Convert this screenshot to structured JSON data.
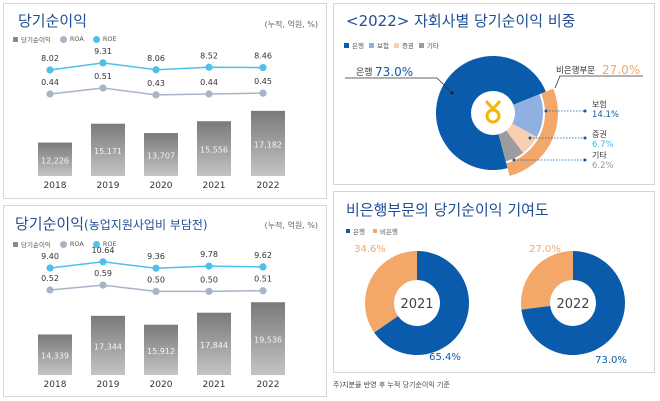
{
  "colors": {
    "bar": "#8a8a8a",
    "roa": "#a9b4c8",
    "roe": "#4fc0ea",
    "bank": "#0a5bab",
    "insurance": "#90b0e2",
    "securities": "#f8cfb3",
    "other": "#9c9c9c",
    "nonbank": "#f3a86a",
    "title": "#1f4e96"
  },
  "panels": {
    "p1": {
      "title": "당기순이익",
      "unit": "(누적, 억원, %)",
      "legend": [
        "당기순이익",
        "ROA",
        "ROE"
      ]
    },
    "p2": {
      "title": "<2022> 자회사별 당기순이익 비중",
      "legend": [
        "은행",
        "보험",
        "증권",
        "기타"
      ],
      "bank_label": "은행",
      "bank_value": "73.0%",
      "nonbank_label": "비은행부문",
      "nonbank_value": "27.0%",
      "logo_icon": "nonghyup-logo"
    },
    "p3": {
      "title": "당기순이익",
      "title_suffix": "(농업지원사업비 부담전)",
      "unit": "(누적, 억원, %)",
      "legend": [
        "당기순이익",
        "ROA",
        "ROE"
      ]
    },
    "p4": {
      "title": "비은행부문의 당기순이익 기여도",
      "legend": [
        "은행",
        "비은행"
      ]
    }
  },
  "footnote": "주)지분율 반영 후 누적 당기순이익 기준",
  "chart_data": [
    {
      "type": "bar",
      "title": "당기순이익",
      "categories": [
        "2018",
        "2019",
        "2020",
        "2021",
        "2022"
      ],
      "series": [
        {
          "name": "당기순이익",
          "values": [
            12226,
            15171,
            13707,
            15556,
            17182
          ],
          "labels": [
            "12,226",
            "15,171",
            "13,707",
            "15,556",
            "17,182"
          ]
        },
        {
          "name": "ROA",
          "type": "line",
          "values": [
            0.44,
            0.51,
            0.43,
            0.44,
            0.45
          ],
          "labels": [
            "0.44",
            "0.51",
            "0.43",
            "0.44",
            "0.45"
          ]
        },
        {
          "name": "ROE",
          "type": "line",
          "values": [
            8.02,
            9.31,
            8.06,
            8.52,
            8.46
          ],
          "labels": [
            "8.02",
            "9.31",
            "8.06",
            "8.52",
            "8.46"
          ]
        }
      ]
    },
    {
      "type": "pie",
      "title": "<2022> 자회사별 당기순이익 비중",
      "slices": [
        {
          "name": "은행",
          "value": 73.0,
          "label": "73.0%"
        },
        {
          "name": "보험",
          "value": 14.1,
          "label": "14.1%"
        },
        {
          "name": "증권",
          "value": 6.7,
          "label": "6.7%"
        },
        {
          "name": "기타",
          "value": 6.2,
          "label": "6.2%"
        }
      ],
      "group": {
        "name": "비은행부문",
        "value": 27.0
      }
    },
    {
      "type": "bar",
      "title": "당기순이익(농업지원사업비 부담전)",
      "categories": [
        "2018",
        "2019",
        "2020",
        "2021",
        "2022"
      ],
      "series": [
        {
          "name": "당기순이익",
          "values": [
            14339,
            17344,
            15912,
            17844,
            19536
          ],
          "labels": [
            "14,339",
            "17,344",
            "15,912",
            "17,844",
            "19,536"
          ]
        },
        {
          "name": "ROA",
          "type": "line",
          "values": [
            0.52,
            0.59,
            0.5,
            0.5,
            0.51
          ],
          "labels": [
            "0.52",
            "0.59",
            "0.50",
            "0.50",
            "0.51"
          ]
        },
        {
          "name": "ROE",
          "type": "line",
          "values": [
            9.4,
            10.64,
            9.36,
            9.78,
            9.62
          ],
          "labels": [
            "9.40",
            "10.64",
            "9.36",
            "9.78",
            "9.62"
          ]
        }
      ]
    },
    {
      "type": "pie",
      "title": "비은행부문의 당기순이익 기여도",
      "charts": [
        {
          "center_label": "2021",
          "slices": [
            {
              "name": "은행",
              "value": 65.4,
              "label": "65.4%"
            },
            {
              "name": "비은행",
              "value": 34.6,
              "label": "34.6%"
            }
          ]
        },
        {
          "center_label": "2022",
          "slices": [
            {
              "name": "은행",
              "value": 73.0,
              "label": "73.0%"
            },
            {
              "name": "비은행",
              "value": 27.0,
              "label": "27.0%"
            }
          ]
        }
      ]
    }
  ]
}
